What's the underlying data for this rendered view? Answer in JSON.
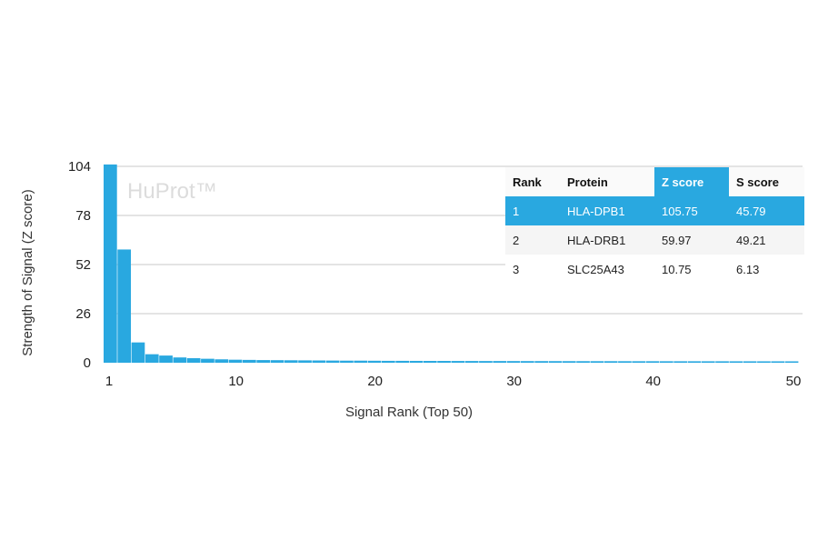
{
  "chart_data": {
    "type": "bar",
    "watermark": "HuProt™",
    "xlabel": "Signal Rank (Top 50)",
    "ylabel": "Strength of Signal (Z score)",
    "ylim": [
      0,
      104
    ],
    "xlim": [
      1,
      50
    ],
    "yticks": [
      0,
      26,
      52,
      78,
      104
    ],
    "xticks": [
      1,
      10,
      20,
      30,
      40,
      50
    ],
    "grid": true,
    "bar_color": "#29a8e0",
    "x": [
      1,
      2,
      3,
      4,
      5,
      6,
      7,
      8,
      9,
      10,
      11,
      12,
      13,
      14,
      15,
      16,
      17,
      18,
      19,
      20,
      21,
      22,
      23,
      24,
      25,
      26,
      27,
      28,
      29,
      30,
      31,
      32,
      33,
      34,
      35,
      36,
      37,
      38,
      39,
      40,
      41,
      42,
      43,
      44,
      45,
      46,
      47,
      48,
      49,
      50
    ],
    "values": [
      105.75,
      59.97,
      10.75,
      4.5,
      3.8,
      2.8,
      2.4,
      2.1,
      1.8,
      1.6,
      1.5,
      1.4,
      1.35,
      1.3,
      1.25,
      1.2,
      1.15,
      1.1,
      1.1,
      1.05,
      1.0,
      1.0,
      0.98,
      0.96,
      0.95,
      0.93,
      0.92,
      0.9,
      0.9,
      0.88,
      0.87,
      0.86,
      0.85,
      0.84,
      0.83,
      0.82,
      0.82,
      0.81,
      0.8,
      0.8,
      0.79,
      0.78,
      0.78,
      0.77,
      0.77,
      0.76,
      0.76,
      0.75,
      0.75,
      0.74
    ]
  },
  "table": {
    "headers": [
      "Rank",
      "Protein",
      "Z score",
      "S score"
    ],
    "rows": [
      [
        "1",
        "HLA-DPB1",
        "105.75",
        "45.79"
      ],
      [
        "2",
        "HLA-DRB1",
        "59.97",
        "49.21"
      ],
      [
        "3",
        "SLC25A43",
        "10.75",
        "6.13"
      ]
    ],
    "highlight_color": "#29a8e0"
  }
}
